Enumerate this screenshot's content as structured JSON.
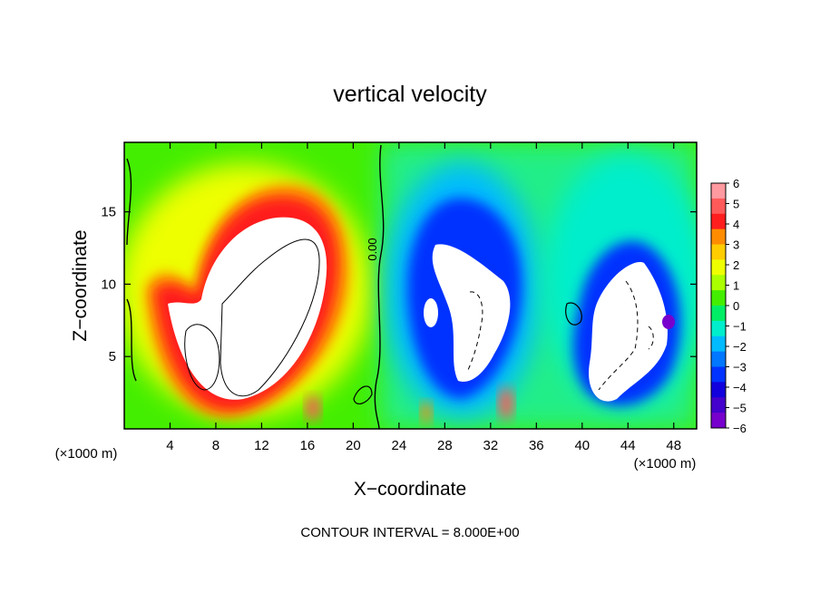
{
  "chart_data": {
    "type": "heatmap",
    "title": "vertical velocity",
    "xlabel": "X−coordinate",
    "ylabel": "Z−coordinate",
    "x_unit_label": "(×1000 m)",
    "y_unit_label": "(×1000 m)",
    "footer": "CONTOUR INTERVAL = 8.000E+00",
    "contour_label": "0.00",
    "xlim": [
      0,
      50
    ],
    "ylim": [
      0,
      19.8
    ],
    "x_ticks": [
      4,
      8,
      12,
      16,
      20,
      24,
      28,
      32,
      36,
      40,
      44,
      48
    ],
    "x_tick_labels": [
      "4",
      "8",
      "12",
      "16",
      "20",
      "24",
      "28",
      "32",
      "36",
      "40",
      "44",
      "48"
    ],
    "y_ticks": [
      5,
      10,
      15
    ],
    "y_tick_labels": [
      "5",
      "10",
      "15"
    ],
    "colorbar": {
      "range": [
        -6,
        6
      ],
      "tick_labels": [
        "6",
        "5",
        "4",
        "3",
        "2",
        "1",
        "0",
        "−1",
        "−2",
        "−3",
        "−4",
        "−5",
        "−6"
      ],
      "colors": [
        "#ff9aa0",
        "#ff5a5a",
        "#ff1e1e",
        "#ff8c00",
        "#ffcc00",
        "#eeff00",
        "#aaff00",
        "#44ee00",
        "#00ee66",
        "#00eecc",
        "#00bbff",
        "#0077ff",
        "#0033ff",
        "#1100dd",
        "#4400cc",
        "#7700cc"
      ]
    },
    "features": [
      {
        "kind": "updraft",
        "x": 10.5,
        "z": 9.0,
        "peak": 6
      },
      {
        "kind": "downdraft",
        "x": 30.5,
        "z": 9.0,
        "peak": -6
      },
      {
        "kind": "downdraft",
        "x": 43.5,
        "z": 6.5,
        "peak": -6
      }
    ]
  }
}
